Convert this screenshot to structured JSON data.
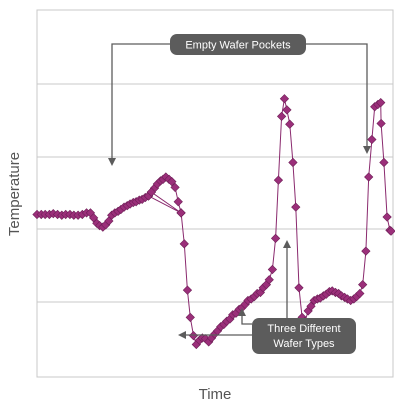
{
  "colors": {
    "series": "#9b2f7a",
    "series_line": "#8a2a6e",
    "callout_bg": "#5c5c5c",
    "grid": "#c8c8c8",
    "frame": "#c8c8c8",
    "text": "#555555"
  },
  "annotations": {
    "empty_pockets": "Empty Wafer Pockets",
    "wafer_types_line1": "Three Different",
    "wafer_types_line2": "Wafer Types"
  },
  "chart_data": {
    "type": "scatter",
    "xlabel": "Time",
    "ylabel": "Temperature",
    "xlim": [
      0,
      100
    ],
    "ylim": [
      0,
      100
    ],
    "grid": true,
    "legend": "none",
    "x_ticks_labeled": false,
    "y_ticks_labeled": false,
    "series": [
      {
        "markers": "diamond",
        "connected": true,
        "points": [
          [
            0.0,
            50.6
          ],
          [
            1.2,
            50.6
          ],
          [
            2.3,
            50.6
          ],
          [
            3.5,
            50.6
          ],
          [
            4.6,
            50.9
          ],
          [
            5.8,
            50.6
          ],
          [
            7.0,
            50.3
          ],
          [
            8.1,
            50.6
          ],
          [
            9.3,
            50.6
          ],
          [
            10.4,
            50.3
          ],
          [
            11.6,
            50.3
          ],
          [
            12.8,
            50.6
          ],
          [
            14.0,
            51.2
          ],
          [
            15.1,
            51.2
          ],
          [
            16.0,
            49.3
          ],
          [
            16.9,
            47.2
          ],
          [
            17.7,
            46.3
          ],
          [
            18.6,
            45.7
          ],
          [
            19.4,
            46.6
          ],
          [
            20.3,
            48.1
          ],
          [
            21.1,
            50.3
          ],
          [
            22.0,
            51.2
          ],
          [
            22.9,
            51.8
          ],
          [
            23.7,
            52.5
          ],
          [
            24.6,
            53.4
          ],
          [
            25.5,
            54.0
          ],
          [
            26.3,
            54.6
          ],
          [
            27.2,
            55.2
          ],
          [
            28.0,
            55.5
          ],
          [
            28.9,
            56.1
          ],
          [
            29.7,
            56.4
          ],
          [
            30.6,
            57.1
          ],
          [
            31.5,
            57.7
          ],
          [
            32.3,
            59.2
          ],
          [
            33.2,
            60.7
          ],
          [
            34.0,
            62.3
          ],
          [
            34.9,
            63.5
          ],
          [
            35.6,
            64.1
          ],
          [
            36.4,
            65.0
          ],
          [
            37.3,
            64.1
          ],
          [
            38.1,
            63.2
          ],
          [
            39.0,
            61.0
          ],
          [
            39.9,
            55.5
          ],
          [
            40.7,
            51.2
          ],
          [
            31.5,
            57.7
          ],
          [
            32.3,
            59.2
          ],
          [
            40.7,
            51.2
          ],
          [
            41.6,
            39.3
          ],
          [
            42.5,
            21.5
          ],
          [
            43.3,
            11.0
          ],
          [
            44.2,
            4.0
          ],
          [
            45.0,
            0.6
          ],
          [
            45.9,
            2.2
          ],
          [
            46.7,
            3.1
          ],
          [
            47.6,
            2.8
          ],
          [
            48.5,
            1.6
          ],
          [
            49.3,
            3.1
          ],
          [
            50.2,
            4.6
          ],
          [
            51.0,
            5.8
          ],
          [
            51.9,
            7.4
          ],
          [
            52.8,
            8.3
          ],
          [
            53.6,
            9.5
          ],
          [
            54.5,
            10.4
          ],
          [
            55.3,
            12.0
          ],
          [
            56.2,
            12.6
          ],
          [
            57.1,
            14.1
          ],
          [
            57.9,
            14.7
          ],
          [
            58.8,
            16.0
          ],
          [
            59.6,
            17.5
          ],
          [
            60.5,
            18.1
          ],
          [
            61.4,
            19.0
          ],
          [
            62.2,
            20.2
          ],
          [
            63.1,
            20.6
          ],
          [
            63.9,
            22.4
          ],
          [
            64.8,
            23.6
          ],
          [
            65.6,
            25.5
          ],
          [
            66.5,
            29.4
          ],
          [
            67.4,
            41.4
          ],
          [
            68.2,
            63.8
          ],
          [
            69.1,
            88.3
          ],
          [
            69.9,
            95.1
          ],
          [
            70.6,
            90.8
          ],
          [
            71.4,
            85.3
          ],
          [
            72.3,
            70.6
          ],
          [
            73.1,
            53.4
          ],
          [
            74.0,
            22.4
          ],
          [
            74.9,
            11.0
          ],
          [
            75.7,
            9.5
          ],
          [
            76.6,
            13.5
          ],
          [
            77.4,
            15.3
          ],
          [
            78.3,
            17.5
          ],
          [
            79.2,
            18.1
          ],
          [
            80.0,
            18.4
          ],
          [
            80.9,
            19.3
          ],
          [
            81.7,
            19.9
          ],
          [
            82.6,
            20.9
          ],
          [
            83.4,
            21.2
          ],
          [
            84.3,
            20.6
          ],
          [
            85.2,
            20.2
          ],
          [
            86.0,
            19.3
          ],
          [
            86.9,
            18.7
          ],
          [
            87.7,
            18.1
          ],
          [
            88.6,
            17.5
          ],
          [
            89.5,
            18.1
          ],
          [
            90.3,
            19.0
          ],
          [
            91.2,
            20.2
          ],
          [
            92.0,
            23.6
          ],
          [
            92.9,
            36.5
          ],
          [
            93.7,
            65.0
          ],
          [
            94.6,
            79.4
          ],
          [
            95.4,
            92.0
          ],
          [
            96.3,
            92.9
          ],
          [
            97.1,
            93.6
          ],
          [
            97.2,
            85.6
          ],
          [
            98.0,
            70.6
          ],
          [
            98.9,
            49.6
          ],
          [
            99.7,
            44.5
          ],
          [
            100.0,
            44.2
          ]
        ]
      }
    ]
  }
}
